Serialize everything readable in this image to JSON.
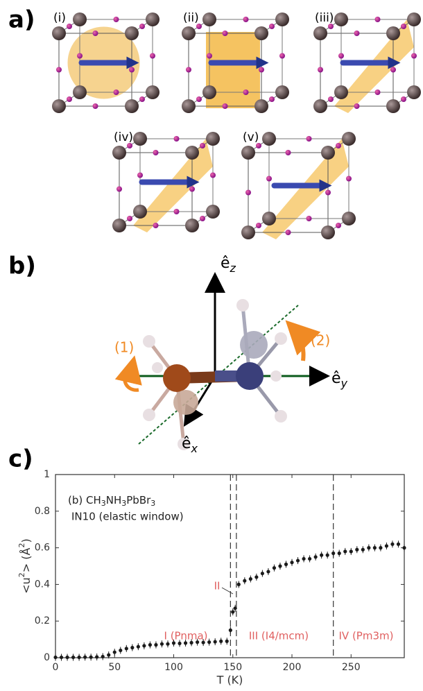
{
  "panel_a": {
    "label": "a)",
    "cube_labels": [
      "(i)",
      "(ii)",
      "(iii)",
      "(iv)",
      "(v)"
    ]
  },
  "panel_b": {
    "label": "b)",
    "axes": [
      {
        "base": "ê",
        "sub": "z"
      },
      {
        "base": "ê",
        "sub": "y"
      },
      {
        "base": "ê",
        "sub": "x"
      }
    ],
    "rotations": [
      "(1)",
      "(2)"
    ]
  },
  "panel_c": {
    "label": "c)"
  },
  "chart_data": {
    "type": "scatter",
    "x_label": "T (K)",
    "y_label_parts": [
      "<u",
      "2",
      "> (Å",
      "2",
      ")"
    ],
    "legend_parts": [
      "(b) CH",
      "3",
      "NH",
      "3",
      "PbBr",
      "3"
    ],
    "legend_line2": "IN10 (elastic window)",
    "phase_lines": [
      148,
      153,
      235
    ],
    "annotations": [
      "I (Pnma)",
      "II",
      "III (I4/mcm)",
      "IV (Pm3m)"
    ],
    "color": "#1a1a1a",
    "xlim": [
      0,
      295
    ],
    "ylim": [
      0,
      1
    ],
    "xticks": [
      0,
      50,
      100,
      150,
      200,
      250
    ],
    "yticks": [
      0,
      0.2,
      0.4,
      0.6,
      0.8,
      1
    ],
    "x": [
      0,
      5,
      10,
      15,
      20,
      25,
      30,
      35,
      40,
      45,
      50,
      55,
      60,
      65,
      70,
      75,
      80,
      85,
      90,
      95,
      100,
      105,
      110,
      115,
      120,
      125,
      130,
      135,
      140,
      145,
      148,
      150,
      152,
      155,
      160,
      165,
      170,
      175,
      180,
      185,
      190,
      195,
      200,
      205,
      210,
      215,
      220,
      225,
      230,
      235,
      240,
      245,
      250,
      255,
      260,
      265,
      270,
      275,
      280,
      285,
      290,
      295
    ],
    "values": [
      0.002,
      0.002,
      0.002,
      0.002,
      0.002,
      0.003,
      0.003,
      0.004,
      0.006,
      0.015,
      0.03,
      0.04,
      0.05,
      0.055,
      0.06,
      0.065,
      0.07,
      0.07,
      0.075,
      0.075,
      0.08,
      0.078,
      0.08,
      0.082,
      0.085,
      0.083,
      0.085,
      0.087,
      0.09,
      0.09,
      0.15,
      0.25,
      0.27,
      0.4,
      0.42,
      0.43,
      0.44,
      0.46,
      0.47,
      0.49,
      0.5,
      0.51,
      0.52,
      0.53,
      0.54,
      0.54,
      0.55,
      0.56,
      0.56,
      0.57,
      0.57,
      0.58,
      0.58,
      0.59,
      0.59,
      0.6,
      0.6,
      0.6,
      0.61,
      0.62,
      0.62,
      0.6
    ]
  }
}
